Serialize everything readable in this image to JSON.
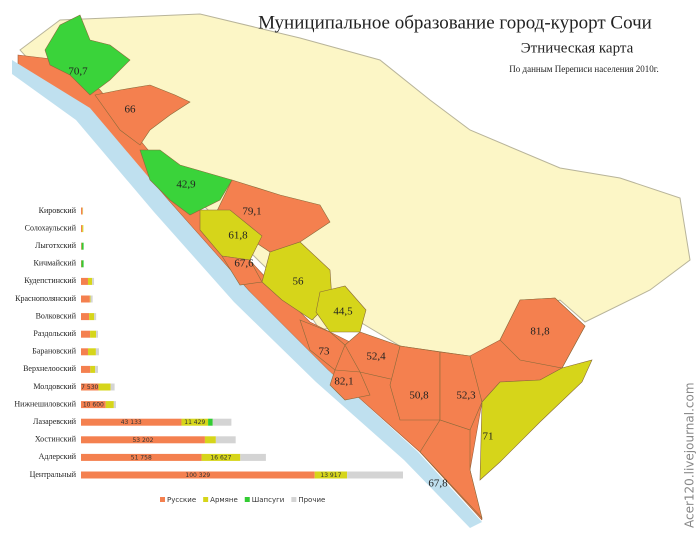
{
  "header": {
    "title": "Муниципальное образование город-курорт Сочи",
    "subtitle": "Этническая карта",
    "source": "По данным Переписи населения 2010г."
  },
  "map": {
    "regions": [
      {
        "label": "70,7",
        "color": "#3ad33a"
      },
      {
        "label": "66",
        "color": "#f4804f"
      },
      {
        "label": "42,9",
        "color": "#3ad33a"
      },
      {
        "label": "79,1",
        "color": "#f4804f"
      },
      {
        "label": "61,8",
        "color": "#d6d51a"
      },
      {
        "label": "67,6",
        "color": "#f4804f"
      },
      {
        "label": "56",
        "color": "#d6d51a"
      },
      {
        "label": "44,5",
        "color": "#d6d51a"
      },
      {
        "label": "73",
        "color": "#f4804f"
      },
      {
        "label": "52,4",
        "color": "#f4804f"
      },
      {
        "label": "82,1",
        "color": "#f4804f"
      },
      {
        "label": "50,8",
        "color": "#f4804f"
      },
      {
        "label": "52,3",
        "color": "#f4804f"
      },
      {
        "label": "81,8",
        "color": "#f4804f"
      },
      {
        "label": "71",
        "color": "#d6d51a"
      },
      {
        "label": "67,8",
        "color": "#f4804f"
      }
    ]
  },
  "chart_data": {
    "type": "bar",
    "orientation": "horizontal",
    "stacked": true,
    "categories": [
      "Кировский",
      "Солохаульский",
      "Лыготхский",
      "Кичмайский",
      "Кудепстинский",
      "Краснополянский",
      "Волковский",
      "Раздольский",
      "Барановский",
      "Верхнелооский",
      "Молдовский",
      "Нижнешиловский",
      "Лазаревский",
      "Хостинский",
      "Адлерский",
      "Центральный"
    ],
    "series": [
      {
        "name": "Русские",
        "color": "#f4804f",
        "values": [
          600,
          500,
          300,
          200,
          3000,
          3800,
          3500,
          3900,
          3000,
          4000,
          7530,
          10600,
          43133,
          53202,
          51758,
          100329
        ],
        "value_labels": [
          null,
          null,
          null,
          null,
          null,
          null,
          null,
          null,
          null,
          null,
          "7 530",
          "10 600",
          "43 133",
          "53 202",
          "51 758",
          "100 329"
        ]
      },
      {
        "name": "Армяне",
        "color": "#d6d51a",
        "values": [
          200,
          500,
          0,
          0,
          1800,
          300,
          2200,
          2600,
          3400,
          2100,
          5200,
          3500,
          11429,
          4700,
          16627,
          13917
        ],
        "value_labels": [
          null,
          null,
          null,
          null,
          null,
          null,
          null,
          null,
          null,
          null,
          null,
          null,
          "11 429",
          null,
          "16 627",
          "13 917"
        ]
      },
      {
        "name": "Шапсуги",
        "color": "#33cc33",
        "values": [
          0,
          0,
          800,
          900,
          0,
          0,
          0,
          0,
          0,
          0,
          0,
          0,
          2000,
          0,
          0,
          0
        ]
      },
      {
        "name": "Прочие",
        "color": "#d4d4d4",
        "values": [
          100,
          100,
          100,
          100,
          800,
          900,
          800,
          800,
          1300,
          1200,
          1700,
          900,
          8000,
          8500,
          11000,
          24000
        ]
      }
    ]
  },
  "watermark": "Acer120.livejournal.com"
}
